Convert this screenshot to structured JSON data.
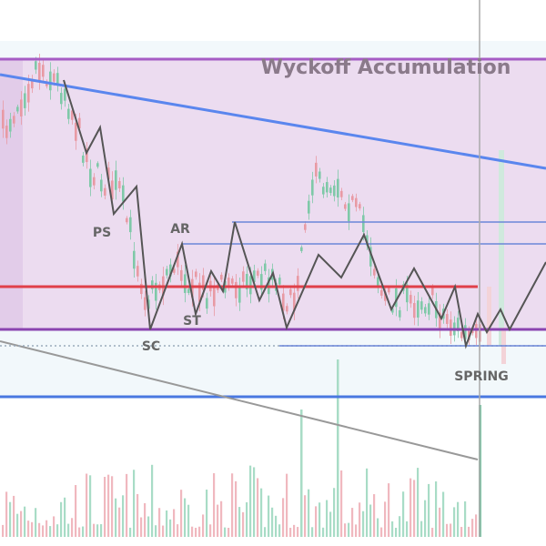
{
  "title": "Wyckoff Accumulation",
  "annotations": [
    "PS",
    "AR",
    "ST",
    "SC",
    "SPRING"
  ]
}
